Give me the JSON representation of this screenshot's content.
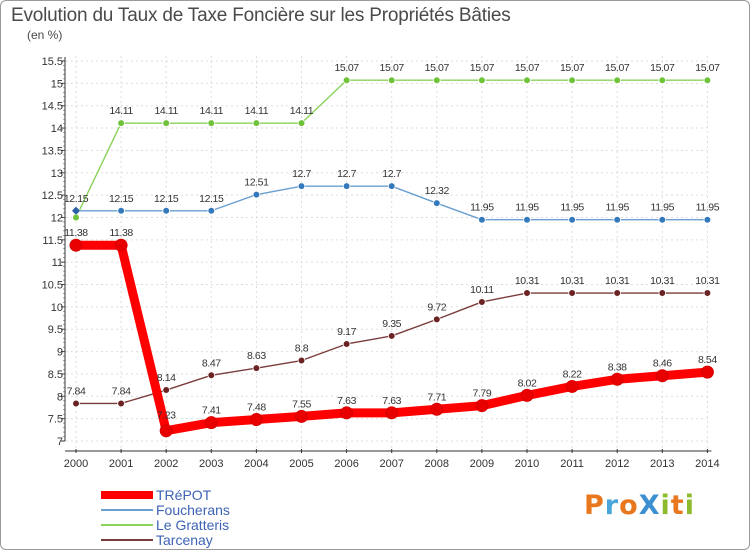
{
  "header": {
    "title": "Evolution du Taux de Taxe Foncière sur les Propriétés Bâties",
    "subtitle": "(en %)"
  },
  "logo": {
    "text": "ProXiti",
    "colors": [
      "#e8771e",
      "#4aa6d8",
      "#e8771e",
      "#3c8fd0",
      "#8dbb2e",
      "#e8771e",
      "#8dbb2e"
    ]
  },
  "chart_data": {
    "type": "line",
    "title": "Evolution du Taux de Taxe Foncière sur les Propriétés Bâties",
    "ylabel": "(en %)",
    "xlabel": "",
    "categories": [
      "2000",
      "2001",
      "2002",
      "2003",
      "2004",
      "2005",
      "2006",
      "2007",
      "2008",
      "2009",
      "2010",
      "2011",
      "2012",
      "2013",
      "2014"
    ],
    "ylim": [
      7,
      15.5
    ],
    "yticks": [
      "7",
      "7.5",
      "8",
      "8.5",
      "9",
      "9.5",
      "10",
      "10.5",
      "11",
      "11.5",
      "12",
      "12.5",
      "13",
      "13.5",
      "14",
      "14.5",
      "15",
      "15.5"
    ],
    "legend_position": "bottom-left",
    "series": [
      {
        "name": "TRéPOT",
        "color": "#ff0000",
        "dot": "#e80000",
        "values": [
          11.38,
          11.38,
          7.23,
          7.41,
          7.48,
          7.55,
          7.63,
          7.63,
          7.71,
          7.79,
          8.02,
          8.22,
          8.38,
          8.46,
          8.54
        ],
        "labels": [
          "11.38",
          "11.38",
          "7.23",
          "7.41",
          "7.48",
          "7.55",
          "7.63",
          "7.63",
          "7.71",
          "7.79",
          "8.02",
          "8.22",
          "8.38",
          "8.46",
          "8.54"
        ]
      },
      {
        "name": "Foucherans",
        "color": "#6a9fd0",
        "dot": "#3579bd",
        "values": [
          12.15,
          12.15,
          12.15,
          12.15,
          12.51,
          12.7,
          12.7,
          12.7,
          12.32,
          11.95,
          11.95,
          11.95,
          11.95,
          11.95,
          11.95
        ],
        "labels": [
          "12.15",
          "12.15",
          "12.15",
          "12.15",
          "12.51",
          "12.7",
          "12.7",
          "12.7",
          "12.32",
          "11.95",
          "11.95",
          "11.95",
          "11.95",
          "11.95",
          "11.95"
        ]
      },
      {
        "name": "Le Gratteris",
        "color": "#8ad25a",
        "dot": "#6ec33a",
        "values": [
          12.0,
          14.11,
          14.11,
          14.11,
          14.11,
          14.11,
          15.07,
          15.07,
          15.07,
          15.07,
          15.07,
          15.07,
          15.07,
          15.07,
          15.07
        ],
        "labels": [
          "",
          "14.11",
          "14.11",
          "14.11",
          "14.11",
          "14.11",
          "15.07",
          "15.07",
          "15.07",
          "15.07",
          "15.07",
          "15.07",
          "15.07",
          "15.07",
          "15.07"
        ]
      },
      {
        "name": "Tarcenay",
        "color": "#7a3b3b",
        "dot": "#6a2222",
        "values": [
          7.84,
          7.84,
          8.14,
          8.47,
          8.63,
          8.8,
          9.17,
          9.35,
          9.72,
          10.11,
          10.31,
          10.31,
          10.31,
          10.31,
          10.31
        ],
        "labels": [
          "7.84",
          "7.84",
          "8.14",
          "8.47",
          "8.63",
          "8.8",
          "9.17",
          "9.35",
          "9.72",
          "10.11",
          "10.31",
          "10.31",
          "10.31",
          "10.31",
          "10.31"
        ]
      }
    ]
  }
}
